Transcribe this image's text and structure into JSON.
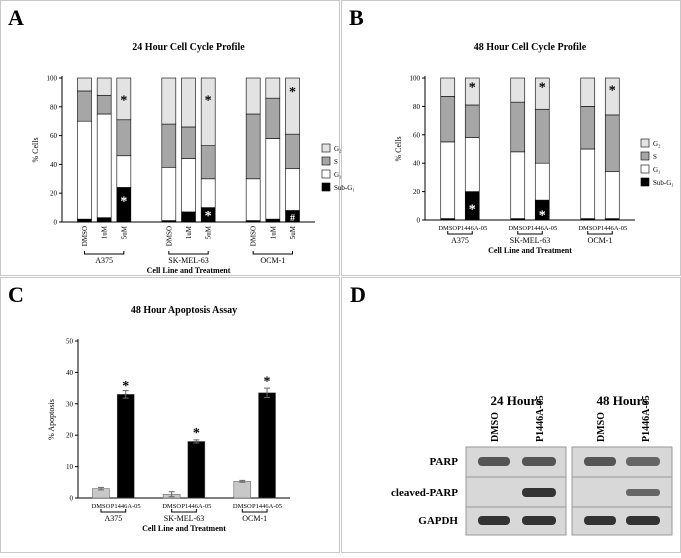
{
  "chart_data": [
    {
      "type": "stacked_bar",
      "panel_label": "A",
      "title": "24 Hour Cell Cycle Profile",
      "y_label": "% Cells",
      "x_label": "Cell Line and Treatment",
      "groups": [
        "A375",
        "SK-MEL-63",
        "OCM-1"
      ],
      "categories": [
        "DMSO",
        "1uM",
        "5uM",
        "DMSO",
        "1uM",
        "5uM",
        "DMSO",
        "1uM",
        "5uM"
      ],
      "ylim": [
        0,
        100
      ],
      "yticks": [
        0,
        20,
        40,
        60,
        80,
        100
      ],
      "series": [
        {
          "name": "Sub-G₁",
          "color": "#000000",
          "values": [
            2,
            3,
            24,
            1,
            7,
            10,
            1,
            2,
            8
          ]
        },
        {
          "name": "G₁",
          "color": "#ffffff",
          "values": [
            68,
            72,
            22,
            37,
            37,
            20,
            29,
            56,
            29
          ]
        },
        {
          "name": "S",
          "color": "#a6a6a6",
          "values": [
            21,
            13,
            25,
            30,
            22,
            23,
            45,
            28,
            24
          ]
        },
        {
          "name": "G₂",
          "color": "#e3e3e3",
          "values": [
            9,
            12,
            29,
            32,
            34,
            47,
            25,
            14,
            39
          ]
        }
      ],
      "annotations": [
        {
          "text": "*",
          "category": 2,
          "y": 85,
          "color": "#000000"
        },
        {
          "text": "*",
          "category": 2,
          "y": 15,
          "color": "#ffffff"
        },
        {
          "text": "*",
          "category": 5,
          "y": 85,
          "color": "#000000"
        },
        {
          "text": "*",
          "category": 5,
          "y": 5,
          "color": "#ffffff"
        },
        {
          "text": "*",
          "category": 8,
          "y": 91,
          "color": "#000000"
        },
        {
          "text": "#",
          "category": 8,
          "y": 4,
          "color": "#ffffff"
        }
      ]
    },
    {
      "type": "stacked_bar",
      "panel_label": "B",
      "title": "48 Hour Cell Cycle Profile",
      "y_label": "% Cells",
      "x_label": "Cell Line and Treatment",
      "groups": [
        "A375",
        "SK-MEL-63",
        "OCM-1"
      ],
      "categories": [
        "DMSO",
        "P1446A-05",
        "DMSO",
        "P1446A-05",
        "DMSO",
        "P1446A-05"
      ],
      "ylim": [
        0,
        100
      ],
      "yticks": [
        0,
        20,
        40,
        60,
        80,
        100
      ],
      "series": [
        {
          "name": "Sub-G₁",
          "color": "#000000",
          "values": [
            1,
            20,
            1,
            14,
            1,
            1
          ]
        },
        {
          "name": "G₁",
          "color": "#ffffff",
          "values": [
            54,
            38,
            47,
            26,
            49,
            33
          ]
        },
        {
          "name": "S",
          "color": "#a6a6a6",
          "values": [
            32,
            23,
            35,
            38,
            30,
            40
          ]
        },
        {
          "name": "G₂",
          "color": "#e3e3e3",
          "values": [
            13,
            19,
            17,
            22,
            20,
            26
          ]
        }
      ],
      "annotations": [
        {
          "text": "*",
          "category": 1,
          "y": 94,
          "color": "#000000"
        },
        {
          "text": "*",
          "category": 1,
          "y": 8,
          "color": "#ffffff"
        },
        {
          "text": "*",
          "category": 3,
          "y": 94,
          "color": "#000000"
        },
        {
          "text": "*",
          "category": 3,
          "y": 4,
          "color": "#ffffff"
        },
        {
          "text": "*",
          "category": 5,
          "y": 92,
          "color": "#000000"
        }
      ]
    },
    {
      "type": "bar",
      "panel_label": "C",
      "title": "48 Hour Apoptosis Assay",
      "y_label": "% Apoptosis",
      "x_label": "Cell Line and Treatment",
      "groups": [
        "A375",
        "SK-MEL-63",
        "OCM-1"
      ],
      "categories": [
        "DMSO",
        "P1446A-05",
        "DMSO",
        "P1446A-05",
        "DMSO",
        "P1446A-05"
      ],
      "values": [
        3,
        33,
        1.2,
        18,
        5.3,
        33.5
      ],
      "errors": [
        0.4,
        1.2,
        0.8,
        0.5,
        0.3,
        1.5
      ],
      "colors": [
        "#c8c8c8",
        "#000000",
        "#c8c8c8",
        "#000000",
        "#c8c8c8",
        "#000000"
      ],
      "ylim": [
        0,
        50
      ],
      "yticks": [
        0,
        10,
        20,
        30,
        40,
        50
      ],
      "annotations": [
        {
          "text": "*",
          "category": 1,
          "y": 36,
          "color": "#000000"
        },
        {
          "text": "*",
          "category": 3,
          "y": 21,
          "color": "#000000"
        },
        {
          "text": "*",
          "category": 5,
          "y": 37.5,
          "color": "#000000"
        }
      ]
    }
  ],
  "blot": {
    "panel_label": "D",
    "time_points": [
      {
        "label": "24 Hours",
        "lanes": [
          "DMSO",
          "P1446A-05"
        ]
      },
      {
        "label": "48 Hours",
        "lanes": [
          "DMSO",
          "P1446A-05"
        ]
      }
    ],
    "rows": [
      "PARP",
      "cleaved-PARP",
      "GAPDH"
    ]
  }
}
